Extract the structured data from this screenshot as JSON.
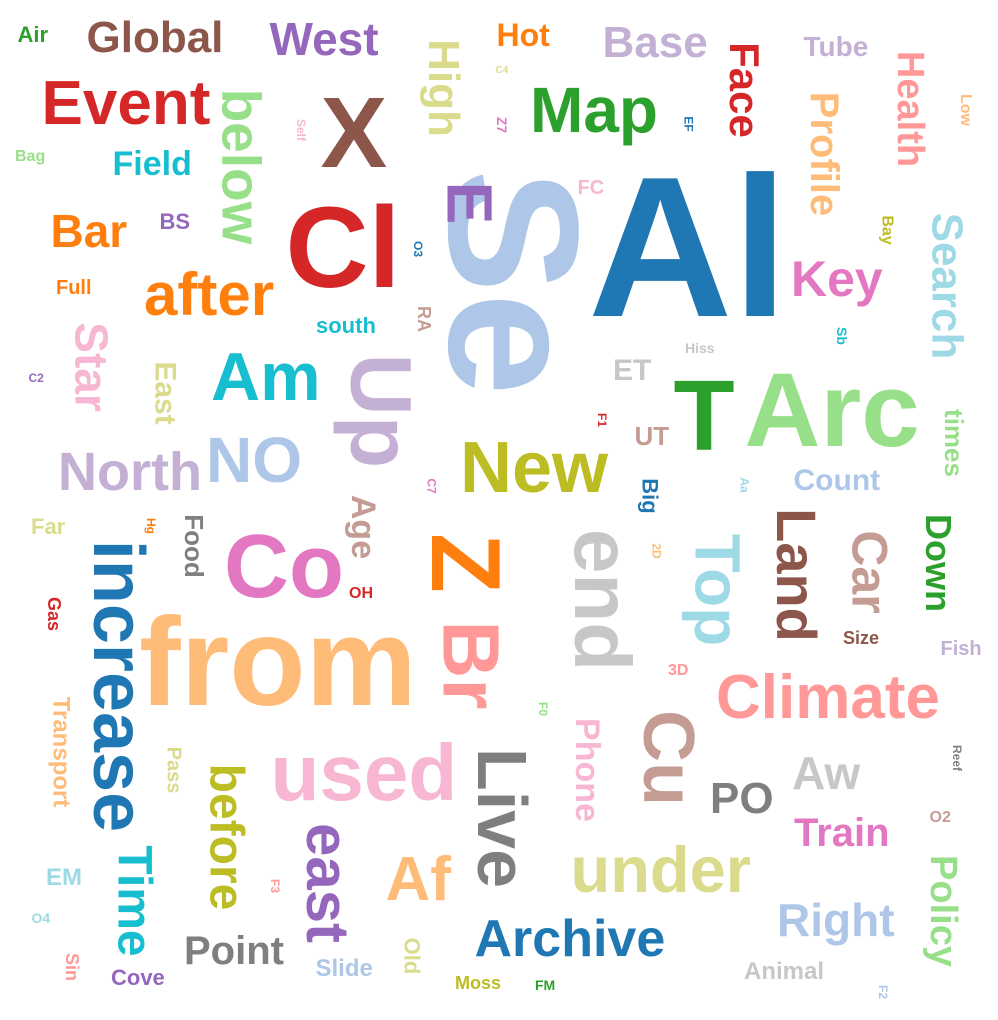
{
  "words": [
    {
      "text": "Al",
      "color": "#1f77b4",
      "orientation": "horizontal"
    },
    {
      "text": "Se",
      "color": "#aec7e8",
      "orientation": "vertical"
    },
    {
      "text": "from",
      "color": "#ffbb78",
      "orientation": "horizontal"
    },
    {
      "text": "Cl",
      "color": "#d62728",
      "orientation": "horizontal"
    },
    {
      "text": "Arc",
      "color": "#98df8a",
      "orientation": "horizontal"
    },
    {
      "text": "Z",
      "color": "#ff7f0e",
      "orientation": "vertical"
    },
    {
      "text": "increase",
      "color": "#1f77b4",
      "orientation": "vertical"
    },
    {
      "text": "T",
      "color": "#2ca02c",
      "orientation": "horizontal"
    },
    {
      "text": "X",
      "color": "#8c564b",
      "orientation": "horizontal"
    },
    {
      "text": "Up",
      "color": "#c5b0d5",
      "orientation": "vertical"
    },
    {
      "text": "Co",
      "color": "#e377c2",
      "orientation": "horizontal"
    },
    {
      "text": "Br",
      "color": "#ff9896",
      "orientation": "vertical"
    },
    {
      "text": "end",
      "color": "#c7c7c7",
      "orientation": "vertical"
    },
    {
      "text": "Cu",
      "color": "#c49c94",
      "orientation": "vertical"
    },
    {
      "text": "used",
      "color": "#f7b6d2",
      "orientation": "horizontal"
    },
    {
      "text": "New",
      "color": "#bcbd22",
      "orientation": "horizontal"
    },
    {
      "text": "Live",
      "color": "#7f7f7f",
      "orientation": "vertical"
    },
    {
      "text": "under",
      "color": "#dbdb8d",
      "orientation": "horizontal"
    },
    {
      "text": "E",
      "color": "#9467bd",
      "orientation": "vertical"
    },
    {
      "text": "Climate",
      "color": "#ff9896",
      "orientation": "horizontal"
    },
    {
      "text": "Event",
      "color": "#d62728",
      "orientation": "horizontal"
    },
    {
      "text": "Map",
      "color": "#2ca02c",
      "orientation": "horizontal"
    },
    {
      "text": "after",
      "color": "#ff7f0e",
      "orientation": "horizontal"
    },
    {
      "text": "Am",
      "color": "#17becf",
      "orientation": "horizontal"
    },
    {
      "text": "NO",
      "color": "#aec7e8",
      "orientation": "horizontal"
    },
    {
      "text": "North",
      "color": "#c5b0d5",
      "orientation": "horizontal"
    },
    {
      "text": "Top",
      "color": "#9edae5",
      "orientation": "vertical"
    },
    {
      "text": "Land",
      "color": "#8c564b",
      "orientation": "vertical"
    },
    {
      "text": "east",
      "color": "#9467bd",
      "orientation": "vertical"
    },
    {
      "text": "Archive",
      "color": "#1f77b4",
      "orientation": "horizontal"
    },
    {
      "text": "below",
      "color": "#98df8a",
      "orientation": "vertical"
    },
    {
      "text": "Af",
      "color": "#ffbb78",
      "orientation": "horizontal"
    },
    {
      "text": "Car",
      "color": "#c49c94",
      "orientation": "vertical"
    },
    {
      "text": "Global",
      "color": "#8c564b",
      "orientation": "horizontal"
    },
    {
      "text": "West",
      "color": "#9467bd",
      "orientation": "horizontal"
    },
    {
      "text": "Base",
      "color": "#c5b0d5",
      "orientation": "horizontal"
    },
    {
      "text": "Star",
      "color": "#f7b6d2",
      "orientation": "vertical"
    },
    {
      "text": "Time",
      "color": "#17becf",
      "orientation": "vertical"
    },
    {
      "text": "before",
      "color": "#bcbd22",
      "orientation": "vertical"
    },
    {
      "text": "Aw",
      "color": "#c7c7c7",
      "orientation": "horizontal"
    },
    {
      "text": "Right",
      "color": "#aec7e8",
      "orientation": "horizontal"
    },
    {
      "text": "Search",
      "color": "#9edae5",
      "orientation": "vertical"
    },
    {
      "text": "Profile",
      "color": "#ffbb78",
      "orientation": "vertical"
    },
    {
      "text": "Health",
      "color": "#ff9896",
      "orientation": "vertical"
    },
    {
      "text": "Face",
      "color": "#d62728",
      "orientation": "vertical"
    },
    {
      "text": "High",
      "color": "#dbdb8d",
      "orientation": "vertical"
    },
    {
      "text": "Key",
      "color": "#e377c2",
      "orientation": "horizontal"
    },
    {
      "text": "Down",
      "color": "#2ca02c",
      "orientation": "vertical"
    },
    {
      "text": "Policy",
      "color": "#98df8a",
      "orientation": "vertical"
    },
    {
      "text": "Point",
      "color": "#7f7f7f",
      "orientation": "horizontal"
    },
    {
      "text": "PO",
      "color": "#7f7f7f",
      "orientation": "horizontal"
    },
    {
      "text": "Train",
      "color": "#e377c2",
      "orientation": "horizontal"
    },
    {
      "text": "Phone",
      "color": "#f7b6d2",
      "orientation": "vertical"
    },
    {
      "text": "Bar",
      "color": "#ff7f0e",
      "orientation": "horizontal"
    },
    {
      "text": "Field",
      "color": "#17becf",
      "orientation": "horizontal"
    },
    {
      "text": "Age",
      "color": "#c49c94",
      "orientation": "vertical"
    },
    {
      "text": "Count",
      "color": "#aec7e8",
      "orientation": "horizontal"
    },
    {
      "text": "Transport",
      "color": "#ffbb78",
      "orientation": "vertical"
    },
    {
      "text": "times",
      "color": "#98df8a",
      "orientation": "vertical"
    },
    {
      "text": "Hot",
      "color": "#ff7f0e",
      "orientation": "horizontal"
    },
    {
      "text": "Tube",
      "color": "#c5b0d5",
      "orientation": "horizontal"
    },
    {
      "text": "East",
      "color": "#dbdb8d",
      "orientation": "vertical"
    },
    {
      "text": "Food",
      "color": "#7f7f7f",
      "orientation": "vertical"
    },
    {
      "text": "Animal",
      "color": "#c7c7c7",
      "orientation": "horizontal"
    },
    {
      "text": "Slide",
      "color": "#aec7e8",
      "orientation": "horizontal"
    },
    {
      "text": "Cove",
      "color": "#9467bd",
      "orientation": "horizontal"
    },
    {
      "text": "south",
      "color": "#17becf",
      "orientation": "horizontal"
    },
    {
      "text": "Old",
      "color": "#dbdb8d",
      "orientation": "vertical"
    },
    {
      "text": "Big",
      "color": "#1f77b4",
      "orientation": "vertical"
    },
    {
      "text": "Air",
      "color": "#2ca02c",
      "orientation": "horizontal"
    },
    {
      "text": "Full",
      "color": "#ff7f0e",
      "orientation": "horizontal"
    },
    {
      "text": "Size",
      "color": "#8c564b",
      "orientation": "horizontal"
    },
    {
      "text": "Fish",
      "color": "#c5b0d5",
      "orientation": "horizontal"
    },
    {
      "text": "Pass",
      "color": "#dbdb8d",
      "orientation": "vertical"
    },
    {
      "text": "ET",
      "color": "#c7c7c7",
      "orientation": "horizontal"
    },
    {
      "text": "UT",
      "color": "#c49c94",
      "orientation": "horizontal"
    },
    {
      "text": "EM",
      "color": "#9edae5",
      "orientation": "horizontal"
    },
    {
      "text": "Moss",
      "color": "#bcbd22",
      "orientation": "horizontal"
    },
    {
      "text": "Bay",
      "color": "#bcbd22",
      "orientation": "vertical"
    },
    {
      "text": "Low",
      "color": "#ffbb78",
      "orientation": "vertical"
    },
    {
      "text": "Gas",
      "color": "#d62728",
      "orientation": "vertical"
    },
    {
      "text": "Far",
      "color": "#dbdb8d",
      "orientation": "horizontal"
    },
    {
      "text": "Bag",
      "color": "#98df8a",
      "orientation": "horizontal"
    },
    {
      "text": "BS",
      "color": "#9467bd",
      "orientation": "horizontal"
    },
    {
      "text": "OH",
      "color": "#d62728",
      "orientation": "horizontal"
    },
    {
      "text": "FC",
      "color": "#f7b6d2",
      "orientation": "horizontal"
    },
    {
      "text": "RA",
      "color": "#c49c94",
      "orientation": "vertical"
    },
    {
      "text": "Hiss",
      "color": "#c7c7c7",
      "orientation": "horizontal"
    },
    {
      "text": "Sin",
      "color": "#ff9896",
      "orientation": "vertical"
    },
    {
      "text": "FM",
      "color": "#2ca02c",
      "orientation": "horizontal"
    },
    {
      "text": "3D",
      "color": "#ff9896",
      "orientation": "horizontal"
    },
    {
      "text": "O2",
      "color": "#c49c94",
      "orientation": "horizontal"
    },
    {
      "text": "Reef",
      "color": "#7f7f7f",
      "orientation": "vertical"
    },
    {
      "text": "Aa",
      "color": "#9edae5",
      "orientation": "vertical"
    },
    {
      "text": "C2",
      "color": "#9467bd",
      "orientation": "horizontal"
    },
    {
      "text": "C4",
      "color": "#dbdb8d",
      "orientation": "horizontal"
    },
    {
      "text": "Self",
      "color": "#f7b6d2",
      "orientation": "vertical"
    },
    {
      "text": "EF",
      "color": "#1f77b4",
      "orientation": "vertical"
    },
    {
      "text": "Z7",
      "color": "#e377c2",
      "orientation": "vertical"
    },
    {
      "text": "O3",
      "color": "#1f77b4",
      "orientation": "vertical"
    },
    {
      "text": "Sb",
      "color": "#17becf",
      "orientation": "vertical"
    },
    {
      "text": "F1",
      "color": "#d62728",
      "orientation": "vertical"
    },
    {
      "text": "C7",
      "color": "#e377c2",
      "orientation": "vertical"
    },
    {
      "text": "Hg",
      "color": "#ff7f0e",
      "orientation": "vertical"
    },
    {
      "text": "2D",
      "color": "#ffbb78",
      "orientation": "vertical"
    },
    {
      "text": "F0",
      "color": "#98df8a",
      "orientation": "vertical"
    },
    {
      "text": "F3",
      "color": "#ff9896",
      "orientation": "vertical"
    },
    {
      "text": "O4",
      "color": "#9edae5",
      "orientation": "horizontal"
    },
    {
      "text": "F2",
      "color": "#aec7e8",
      "orientation": "vertical"
    }
  ]
}
